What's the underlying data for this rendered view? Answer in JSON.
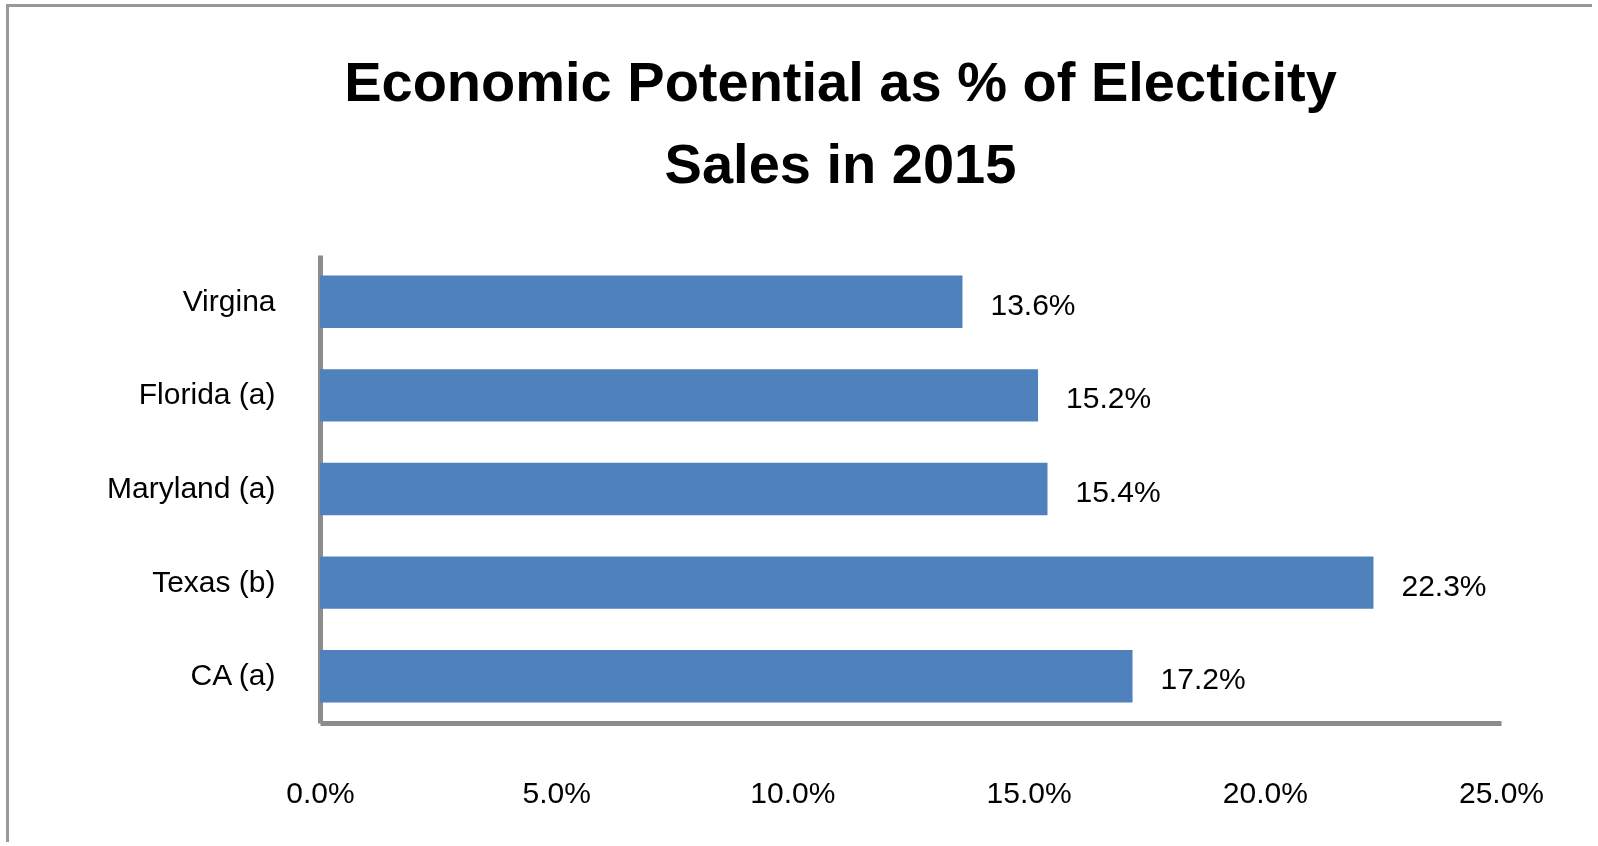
{
  "chart_data": {
    "type": "bar",
    "orientation": "horizontal",
    "title": "Economic  Potential as % of Electicity Sales  in 2015",
    "categories": [
      "Virgina",
      "Florida (a)",
      "Maryland (a)",
      "Texas (b)",
      "CA (a)"
    ],
    "values": [
      13.6,
      15.2,
      15.4,
      22.3,
      17.2
    ],
    "value_labels": [
      "13.6%",
      "15.2%",
      "15.4%",
      "22.3%",
      "17.2%"
    ],
    "color": "#4f81bd",
    "xlim": [
      0,
      25
    ],
    "xticks": [
      {
        "value": 0,
        "label": "0.0%"
      },
      {
        "value": 5,
        "label": "5.0%"
      },
      {
        "value": 10,
        "label": "10.0%"
      },
      {
        "value": 15,
        "label": "15.0%"
      },
      {
        "value": 20,
        "label": "20.0%"
      },
      {
        "value": 25,
        "label": "25.0%"
      }
    ],
    "grid": false
  }
}
